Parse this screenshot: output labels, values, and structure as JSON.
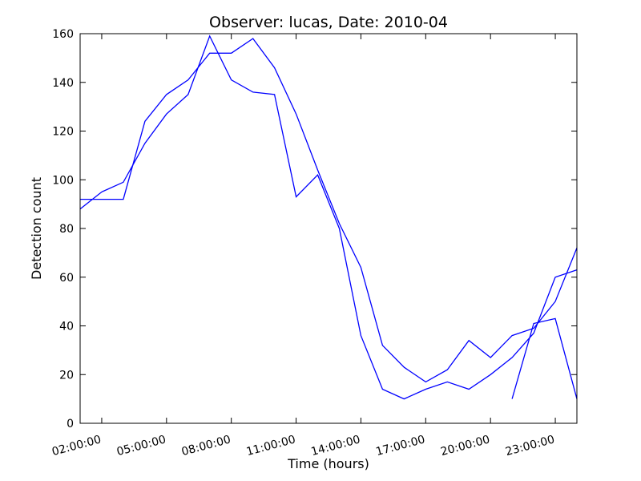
{
  "chart_data": {
    "type": "line",
    "title": "Observer: lucas, Date: 2010-04",
    "xlabel": "Time (hours)",
    "ylabel": "Detection count",
    "xlim": [
      "01:00:00",
      "24:00:00"
    ],
    "ylim": [
      0,
      160
    ],
    "x_tick_labels": [
      "02:00:00",
      "05:00:00",
      "08:00:00",
      "11:00:00",
      "14:00:00",
      "17:00:00",
      "20:00:00",
      "23:00:00"
    ],
    "y_tick_labels": [
      "0",
      "20",
      "40",
      "60",
      "80",
      "100",
      "120",
      "140",
      "160"
    ],
    "grid": false,
    "legend": "none",
    "line_color": "#0000ff",
    "series": [
      {
        "x": [
          "01:00:00",
          "02:00:00",
          "03:00:00",
          "04:00:00",
          "05:00:00",
          "06:00:00",
          "07:00:00",
          "08:00:00",
          "09:00:00",
          "10:00:00",
          "11:00:00",
          "12:00:00",
          "13:00:00",
          "14:00:00",
          "15:00:00",
          "16:00:00",
          "17:00:00",
          "18:00:00",
          "19:00:00",
          "20:00:00",
          "21:00:00",
          "22:00:00",
          "23:00:00",
          "24:00:00"
        ],
        "values": [
          88,
          95,
          99,
          115,
          127,
          135,
          159,
          141,
          136,
          135,
          93,
          102,
          80,
          36,
          14,
          10,
          14,
          17,
          14,
          20,
          27,
          37,
          60,
          63
        ]
      },
      {
        "x": [
          "01:00:00",
          "02:00:00",
          "03:00:00",
          "04:00:00",
          "05:00:00",
          "06:00:00",
          "07:00:00",
          "08:00:00",
          "09:00:00",
          "10:00:00",
          "11:00:00",
          "12:00:00",
          "13:00:00",
          "14:00:00",
          "15:00:00",
          "16:00:00",
          "17:00:00",
          "18:00:00",
          "19:00:00",
          "20:00:00",
          "21:00:00",
          "22:00:00",
          "23:00:00",
          "24:00:00"
        ],
        "values": [
          92,
          92,
          92,
          124,
          135,
          141,
          152,
          152,
          158,
          146,
          127,
          104,
          82,
          64,
          32,
          23,
          17,
          22,
          34,
          27,
          36,
          39,
          50,
          72
        ]
      },
      {
        "x": [
          "21:00:00",
          "22:00:00",
          "23:00:00",
          "24:00:00"
        ],
        "values": [
          10,
          41,
          43,
          10
        ]
      }
    ]
  }
}
